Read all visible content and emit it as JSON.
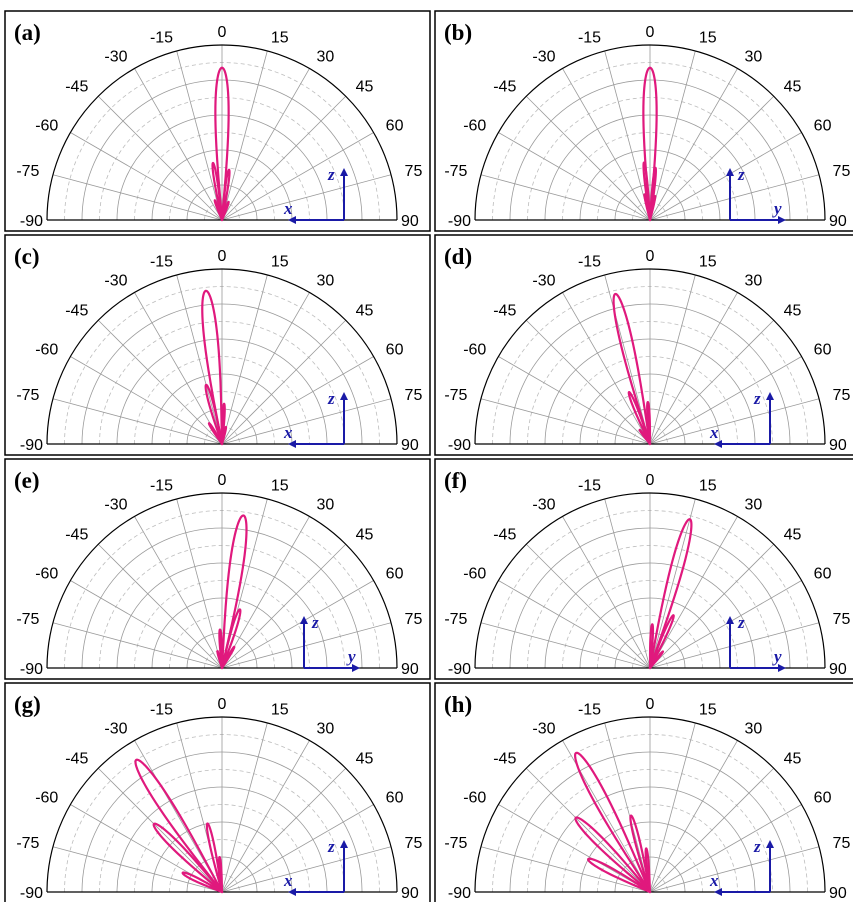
{
  "colors": {
    "pattern": "#e0197d",
    "axes_arrow": "#1a1aa6",
    "grid": "#9a9a9a"
  },
  "chart_data": [
    {
      "type": "polar",
      "panel": "(a)",
      "theta_range": [
        -90,
        90
      ],
      "theta_ticks": [
        -90,
        -75,
        -60,
        -45,
        -30,
        -15,
        0,
        15,
        30,
        45,
        60,
        75,
        90
      ],
      "inset_axes": {
        "horizontal": "x",
        "vertical": "z",
        "horizontal_direction": "left"
      },
      "lobes": [
        {
          "angle": 0,
          "length": 0.87,
          "width": 5
        },
        {
          "angle": -9,
          "length": 0.33,
          "width": 3
        },
        {
          "angle": 8,
          "length": 0.29,
          "width": 3
        },
        {
          "angle": -20,
          "length": 0.12,
          "width": 3
        },
        {
          "angle": 20,
          "length": 0.11,
          "width": 3
        }
      ]
    },
    {
      "type": "polar",
      "panel": "(b)",
      "theta_range": [
        -90,
        90
      ],
      "theta_ticks": [
        -90,
        -75,
        -60,
        -45,
        -30,
        -15,
        0,
        15,
        30,
        45,
        60,
        75,
        90
      ],
      "inset_axes": {
        "horizontal": "y",
        "vertical": "z",
        "horizontal_direction": "right"
      },
      "lobes": [
        {
          "angle": 0,
          "length": 0.87,
          "width": 5
        },
        {
          "angle": -6,
          "length": 0.33,
          "width": 2.5
        },
        {
          "angle": 6,
          "length": 0.3,
          "width": 2.5
        },
        {
          "angle": -12,
          "length": 0.15,
          "width": 2.5
        },
        {
          "angle": 12,
          "length": 0.14,
          "width": 2.5
        }
      ]
    },
    {
      "type": "polar",
      "panel": "(c)",
      "theta_range": [
        -90,
        90
      ],
      "theta_ticks": [
        -90,
        -75,
        -60,
        -45,
        -30,
        -15,
        0,
        15,
        30,
        45,
        60,
        75,
        90
      ],
      "inset_axes": {
        "horizontal": "x",
        "vertical": "z",
        "horizontal_direction": "left"
      },
      "lobes": [
        {
          "angle": -6,
          "length": 0.88,
          "width": 5
        },
        {
          "angle": -15,
          "length": 0.35,
          "width": 4
        },
        {
          "angle": 3,
          "length": 0.23,
          "width": 3
        },
        {
          "angle": -32,
          "length": 0.14,
          "width": 3.5
        },
        {
          "angle": 13,
          "length": 0.1,
          "width": 3
        }
      ]
    },
    {
      "type": "polar",
      "panel": "(d)",
      "theta_range": [
        -90,
        90
      ],
      "theta_ticks": [
        -90,
        -75,
        -60,
        -45,
        -30,
        -15,
        0,
        15,
        30,
        45,
        60,
        75,
        90
      ],
      "inset_axes": {
        "horizontal": "x",
        "vertical": "z",
        "horizontal_direction": "left"
      },
      "lobes": [
        {
          "angle": -13,
          "length": 0.88,
          "width": 4.5
        },
        {
          "angle": -22,
          "length": 0.32,
          "width": 3.5
        },
        {
          "angle": -3,
          "length": 0.24,
          "width": 3
        },
        {
          "angle": -36,
          "length": 0.1,
          "width": 3
        }
      ]
    },
    {
      "type": "polar",
      "panel": "(e)",
      "theta_range": [
        -90,
        90
      ],
      "theta_ticks": [
        -90,
        -75,
        -60,
        -45,
        -30,
        -15,
        0,
        15,
        30,
        45,
        60,
        75,
        90
      ],
      "inset_axes": {
        "horizontal": "y",
        "vertical": "z",
        "horizontal_direction": "right"
      },
      "lobes": [
        {
          "angle": 8,
          "length": 0.88,
          "width": 5
        },
        {
          "angle": 17,
          "length": 0.35,
          "width": 4
        },
        {
          "angle": -3,
          "length": 0.22,
          "width": 3
        },
        {
          "angle": 30,
          "length": 0.14,
          "width": 3
        },
        {
          "angle": -15,
          "length": 0.1,
          "width": 3
        }
      ]
    },
    {
      "type": "polar",
      "panel": "(f)",
      "theta_range": [
        -90,
        90
      ],
      "theta_ticks": [
        -90,
        -75,
        -60,
        -45,
        -30,
        -15,
        0,
        15,
        30,
        45,
        60,
        75,
        90
      ],
      "inset_axes": {
        "horizontal": "y",
        "vertical": "z",
        "horizontal_direction": "right"
      },
      "lobes": [
        {
          "angle": 15,
          "length": 0.88,
          "width": 4.5
        },
        {
          "angle": 24,
          "length": 0.33,
          "width": 3.5
        },
        {
          "angle": 3,
          "length": 0.25,
          "width": 3
        },
        {
          "angle": 38,
          "length": 0.12,
          "width": 3
        }
      ]
    },
    {
      "type": "polar",
      "panel": "(g)",
      "theta_range": [
        -90,
        90
      ],
      "theta_ticks": [
        -90,
        -75,
        -60,
        -45,
        -30,
        -15,
        0,
        15,
        30,
        45,
        60,
        75,
        90
      ],
      "inset_axes": {
        "horizontal": "x",
        "vertical": "z",
        "horizontal_direction": "left"
      },
      "lobes": [
        {
          "angle": -33,
          "length": 0.9,
          "width": 5
        },
        {
          "angle": -45,
          "length": 0.55,
          "width": 5
        },
        {
          "angle": -12,
          "length": 0.4,
          "width": 3.5
        },
        {
          "angle": -64,
          "length": 0.25,
          "width": 5
        },
        {
          "angle": -4,
          "length": 0.2,
          "width": 3
        }
      ]
    },
    {
      "type": "polar",
      "panel": "(h)",
      "theta_range": [
        -90,
        90
      ],
      "theta_ticks": [
        -90,
        -75,
        -60,
        -45,
        -30,
        -15,
        0,
        15,
        30,
        45,
        60,
        75,
        90
      ],
      "inset_axes": {
        "horizontal": "x",
        "vertical": "z",
        "horizontal_direction": "left"
      },
      "lobes": [
        {
          "angle": -28,
          "length": 0.9,
          "width": 5
        },
        {
          "angle": -45,
          "length": 0.6,
          "width": 5
        },
        {
          "angle": -14,
          "length": 0.45,
          "width": 3.5
        },
        {
          "angle": -62,
          "length": 0.4,
          "width": 5
        },
        {
          "angle": -5,
          "length": 0.25,
          "width": 3
        }
      ]
    }
  ]
}
